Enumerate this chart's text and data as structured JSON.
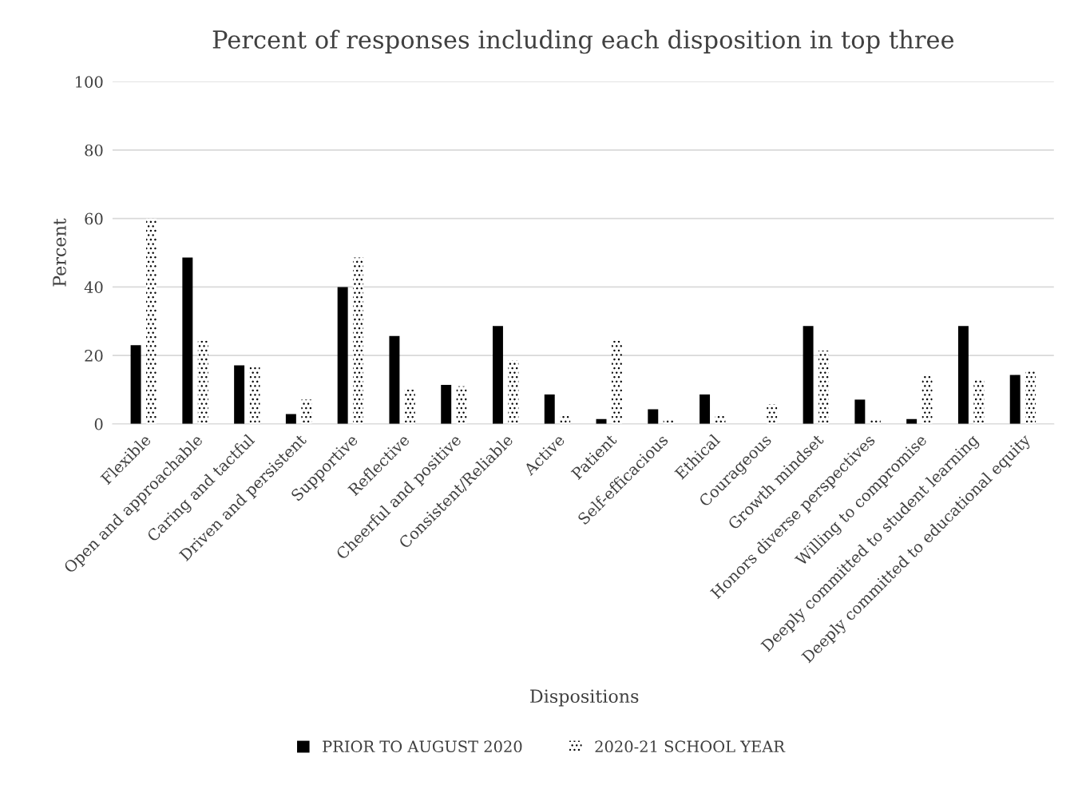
{
  "chart_data": {
    "type": "bar",
    "title": "Percent of responses including each disposition in top three",
    "xlabel": "Dispositions",
    "ylabel": "Percent",
    "categories": [
      "Flexible",
      "Open and approachable",
      "Caring and tactful",
      "Driven and persistent",
      "Supportive",
      "Reflective",
      "Cheerful and positive",
      "Consistent/Reliable",
      "Active",
      "Patient",
      "Self-efficacious",
      "Ethical",
      "Courageous",
      "Growth mindset",
      "Honors diverse perspectives",
      "Willing to compromise",
      "Deeply committed to student learning",
      "Deeply committed to educational equity"
    ],
    "series": [
      {
        "name": "PRIOR TO AUGUST 2020",
        "color": "#000000",
        "values": [
          23,
          48.6,
          17.1,
          2.9,
          40,
          25.7,
          11.4,
          28.6,
          8.6,
          1.4,
          4.3,
          8.6,
          0,
          28.6,
          7.1,
          1.4,
          28.6,
          14.3
        ]
      },
      {
        "name": "2020-21 SCHOOL YEAR",
        "color": "#ffffff",
        "values": [
          60,
          24.3,
          16.7,
          7.1,
          48.6,
          10,
          11,
          18.6,
          2.9,
          24.3,
          1.4,
          2.9,
          5.7,
          21.4,
          1.4,
          14.3,
          12.9,
          15.7
        ]
      }
    ],
    "ylim": [
      0,
      100
    ],
    "yticks": [
      0,
      20,
      40,
      60,
      80,
      100
    ],
    "grid": "y",
    "legend": "bottom"
  }
}
